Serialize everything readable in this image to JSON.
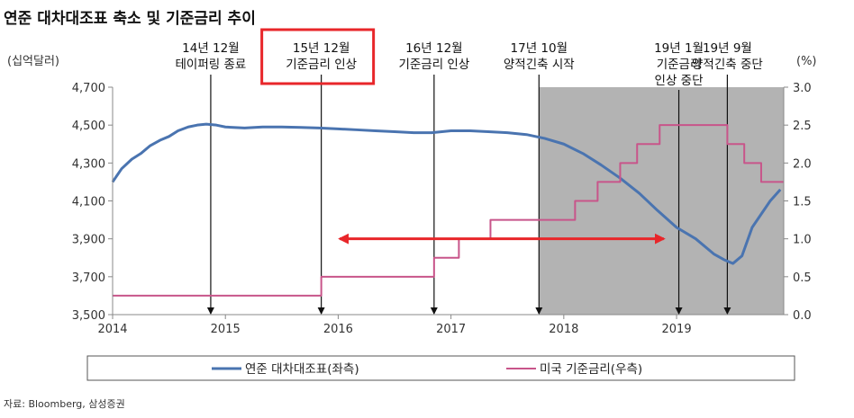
{
  "chart_data": {
    "type": "line",
    "title": "연준 대차대조표 축소 및 기준금리 추이",
    "y_left_label": "(십억달러)",
    "y_right_label": "(%)",
    "x_range": [
      2014.0,
      2019.95
    ],
    "x_ticks": [
      "2014",
      "2015",
      "2016",
      "2017",
      "2018",
      "2019"
    ],
    "y_left_range": [
      3500,
      4700
    ],
    "y_left_ticks": [
      "3,500",
      "3,700",
      "3,900",
      "4,100",
      "4,300",
      "4,500",
      "4,700"
    ],
    "y_right_range": [
      0,
      3
    ],
    "y_right_ticks": [
      "0.0",
      "0.5",
      "1.0",
      "1.5",
      "2.0",
      "2.5",
      "3.0"
    ],
    "shaded_region": {
      "x_start": 2017.78,
      "x_end": 2019.95,
      "color": "#b3b3b3"
    },
    "series": [
      {
        "name": "연준 대차대조표(좌측)",
        "axis": "left",
        "color": "#4a74b0",
        "x": [
          2014.0,
          2014.08,
          2014.17,
          2014.25,
          2014.33,
          2014.42,
          2014.5,
          2014.58,
          2014.67,
          2014.75,
          2014.83,
          2014.92,
          2015.0,
          2015.17,
          2015.33,
          2015.5,
          2015.67,
          2015.83,
          2016.0,
          2016.17,
          2016.33,
          2016.5,
          2016.67,
          2016.83,
          2017.0,
          2017.17,
          2017.33,
          2017.5,
          2017.67,
          2017.83,
          2018.0,
          2018.17,
          2018.33,
          2018.5,
          2018.67,
          2018.83,
          2019.0,
          2019.17,
          2019.33,
          2019.42,
          2019.5,
          2019.58,
          2019.67,
          2019.83,
          2019.92
        ],
        "values": [
          4200,
          4270,
          4320,
          4350,
          4390,
          4420,
          4440,
          4470,
          4490,
          4500,
          4505,
          4500,
          4490,
          4485,
          4490,
          4490,
          4488,
          4485,
          4480,
          4475,
          4470,
          4465,
          4460,
          4460,
          4470,
          4470,
          4465,
          4460,
          4450,
          4430,
          4400,
          4350,
          4290,
          4220,
          4140,
          4050,
          3960,
          3900,
          3820,
          3790,
          3770,
          3810,
          3960,
          4100,
          4160
        ]
      },
      {
        "name": "미국 기준금리(우측)",
        "axis": "right",
        "color": "#c8558a",
        "step": true,
        "x": [
          2014.0,
          2015.85,
          2016.85,
          2017.07,
          2017.35,
          2017.8,
          2018.1,
          2018.3,
          2018.5,
          2018.65,
          2018.85,
          2019.0,
          2019.45,
          2019.6,
          2019.75,
          2019.95
        ],
        "values": [
          0.25,
          0.5,
          0.75,
          1.0,
          1.25,
          1.25,
          1.5,
          1.75,
          2.0,
          2.25,
          2.5,
          2.5,
          2.25,
          2.0,
          1.75,
          1.75
        ]
      }
    ],
    "annotations": [
      {
        "x": 2014.87,
        "lines": [
          "14년 12월",
          "테이퍼링 종료"
        ],
        "highlighted": false
      },
      {
        "x": 2015.85,
        "lines": [
          "15년 12월",
          "기준금리 인상"
        ],
        "highlighted": true
      },
      {
        "x": 2016.85,
        "lines": [
          "16년 12월",
          "기준금리 인상"
        ],
        "highlighted": false
      },
      {
        "x": 2017.78,
        "lines": [
          "17년 10월",
          "양적긴축 시작"
        ],
        "highlighted": false
      },
      {
        "x": 2019.02,
        "lines": [
          "19년 1월",
          "기준금리",
          "인상 중단"
        ],
        "highlighted": false
      },
      {
        "x": 2019.45,
        "lines": [
          "19년 9월",
          "양적긴축 중단"
        ],
        "highlighted": false
      }
    ],
    "double_arrow": {
      "x_start": 2015.95,
      "x_end": 2018.95,
      "y_left": 3900,
      "color": "#e8262a"
    },
    "highlight_box_color": "#e8262a",
    "legend_placement": "bottom",
    "grid": false
  },
  "source": "자료: Bloomberg, 삼성증권"
}
